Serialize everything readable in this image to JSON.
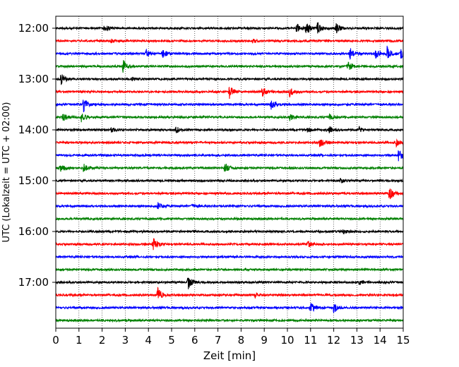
{
  "chart_data": {
    "type": "line",
    "title": "",
    "xlabel": "Zeit  [min]",
    "ylabel": "UTC (Lokalzeit = UTC + 02:00)",
    "xlim": [
      0,
      15
    ],
    "x_ticks": [
      0,
      1,
      2,
      3,
      4,
      5,
      6,
      7,
      8,
      9,
      10,
      11,
      12,
      13,
      14,
      15
    ],
    "y_tick_labels": [
      "12:00",
      "13:00",
      "14:00",
      "15:00",
      "16:00",
      "17:00"
    ],
    "grid": "vertical dotted",
    "row_colors": [
      "#000000",
      "#ff0000",
      "#0000ff",
      "#008000"
    ],
    "series": [
      {
        "start": "12:00",
        "events": [
          [
            2.1,
            0.5
          ],
          [
            10.4,
            0.6
          ],
          [
            10.8,
            0.9
          ],
          [
            11.3,
            0.8
          ],
          [
            12.1,
            0.7
          ]
        ]
      },
      {
        "start": "12:15",
        "events": [
          [
            2.4,
            0.2
          ],
          [
            8.5,
            0.2
          ]
        ]
      },
      {
        "start": "12:30",
        "events": [
          [
            3.9,
            0.5
          ],
          [
            4.6,
            0.6
          ],
          [
            12.7,
            0.7
          ],
          [
            13.8,
            0.6
          ],
          [
            14.3,
            0.9
          ],
          [
            14.9,
            0.8
          ]
        ]
      },
      {
        "start": "12:45",
        "events": [
          [
            2.9,
            0.9
          ],
          [
            12.6,
            0.6
          ]
        ]
      },
      {
        "start": "13:00",
        "events": [
          [
            0.2,
            0.9
          ],
          [
            3.3,
            0.2
          ]
        ]
      },
      {
        "start": "13:15",
        "events": [
          [
            7.5,
            0.8
          ],
          [
            8.9,
            0.7
          ],
          [
            10.1,
            0.6
          ]
        ]
      },
      {
        "start": "13:30",
        "events": [
          [
            1.2,
            0.9
          ],
          [
            9.3,
            0.8
          ]
        ]
      },
      {
        "start": "13:45",
        "events": [
          [
            0.3,
            0.6
          ],
          [
            1.1,
            0.7
          ],
          [
            10.1,
            0.4
          ],
          [
            11.8,
            0.4
          ]
        ]
      },
      {
        "start": "14:00",
        "events": [
          [
            2.4,
            0.4
          ],
          [
            5.2,
            0.4
          ],
          [
            10.8,
            0.4
          ],
          [
            11.8,
            0.4
          ],
          [
            13.1,
            0.4
          ]
        ]
      },
      {
        "start": "14:15",
        "events": [
          [
            11.4,
            0.6
          ],
          [
            14.7,
            0.4
          ]
        ]
      },
      {
        "start": "14:30",
        "events": [
          [
            14.8,
            0.8
          ]
        ]
      },
      {
        "start": "14:45",
        "events": [
          [
            0.2,
            0.5
          ],
          [
            1.2,
            0.5
          ],
          [
            7.3,
            0.7
          ]
        ]
      },
      {
        "start": "15:00",
        "events": [
          [
            12.3,
            0.3
          ]
        ]
      },
      {
        "start": "15:15",
        "events": [
          [
            14.4,
            0.9
          ]
        ]
      },
      {
        "start": "15:30",
        "events": [
          [
            4.4,
            0.5
          ],
          [
            5.9,
            0.3
          ]
        ]
      },
      {
        "start": "15:45",
        "events": []
      },
      {
        "start": "16:00",
        "events": [
          [
            12.4,
            0.3
          ]
        ]
      },
      {
        "start": "16:15",
        "events": [
          [
            4.2,
            0.9
          ],
          [
            10.9,
            0.4
          ]
        ]
      },
      {
        "start": "16:30",
        "events": []
      },
      {
        "start": "16:45",
        "events": []
      },
      {
        "start": "17:00",
        "events": [
          [
            5.7,
            0.9
          ],
          [
            13.1,
            0.3
          ]
        ]
      },
      {
        "start": "17:15",
        "events": [
          [
            4.4,
            0.9
          ],
          [
            8.6,
            0.3
          ]
        ]
      },
      {
        "start": "17:30",
        "events": [
          [
            11.0,
            0.7
          ],
          [
            12.0,
            0.6
          ]
        ]
      },
      {
        "start": "17:45",
        "events": []
      }
    ]
  }
}
